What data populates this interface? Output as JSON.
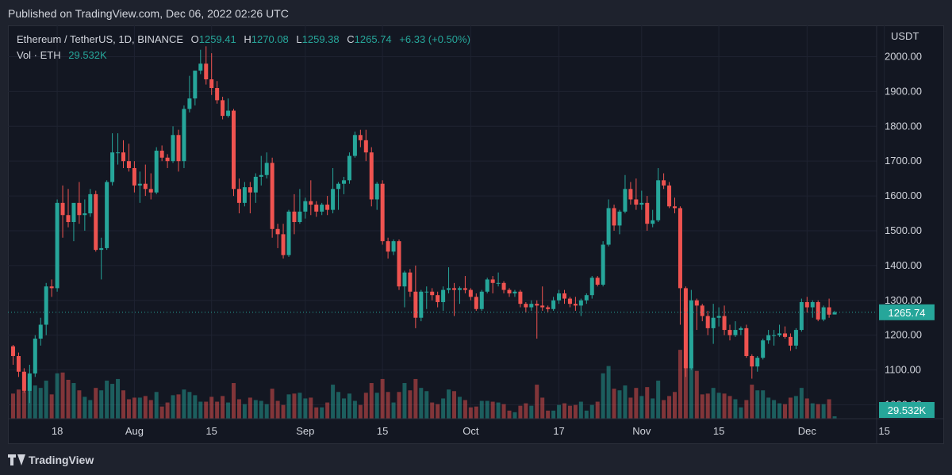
{
  "header": {
    "published": "Published on TradingView.com, Dec 06, 2022 02:26 UTC"
  },
  "legend": {
    "symbol": "Ethereum / TetherUS, 1D, BINANCE",
    "o_label": "O",
    "o_value": "1259.41",
    "h_label": "H",
    "h_value": "1270.08",
    "l_label": "L",
    "l_value": "1259.38",
    "c_label": "C",
    "c_value": "1265.74",
    "change": "+6.33 (+0.50%)",
    "vol_label": "Vol · ETH",
    "vol_value": "29.532K"
  },
  "footer": {
    "brand": "TradingView"
  },
  "colors": {
    "up": "#26a69a",
    "down": "#ef5350",
    "background": "#131722",
    "text": "#d1d4dc",
    "grid": "#1f2331"
  },
  "chart_data": {
    "type": "candlestick",
    "title": "Ethereum / TetherUS, 1D, BINANCE",
    "currency": "USDT",
    "ylim": [
      960,
      2090
    ],
    "yticks": [
      "2000.00",
      "1900.00",
      "1800.00",
      "1700.00",
      "1600.00",
      "1500.00",
      "1400.00",
      "1300.00",
      "1200.00",
      "1100.00",
      "1000.00"
    ],
    "xticks": [
      {
        "label": "18",
        "date": "2022-07-18"
      },
      {
        "label": "Aug",
        "date": "2022-08-01"
      },
      {
        "label": "15",
        "date": "2022-08-15"
      },
      {
        "label": "Sep",
        "date": "2022-09-01"
      },
      {
        "label": "15",
        "date": "2022-09-15"
      },
      {
        "label": "Oct",
        "date": "2022-10-01"
      },
      {
        "label": "17",
        "date": "2022-10-17"
      },
      {
        "label": "Nov",
        "date": "2022-11-01"
      },
      {
        "label": "15",
        "date": "2022-11-15"
      },
      {
        "label": "Dec",
        "date": "2022-12-01"
      },
      {
        "label": "15",
        "date": "2022-12-15"
      }
    ],
    "last_price": "1265.74",
    "last_volume": "29.532K",
    "columns": [
      "date",
      "open",
      "high",
      "low",
      "close",
      "volume"
    ],
    "candles": [
      [
        "2022-07-10",
        1168,
        1172,
        1115,
        1140,
        310
      ],
      [
        "2022-07-11",
        1140,
        1150,
        1080,
        1095,
        360
      ],
      [
        "2022-07-12",
        1095,
        1105,
        1035,
        1040,
        340
      ],
      [
        "2022-07-13",
        1040,
        1115,
        1005,
        1090,
        520
      ],
      [
        "2022-07-14",
        1090,
        1200,
        1080,
        1190,
        410
      ],
      [
        "2022-07-15",
        1190,
        1250,
        1170,
        1230,
        380
      ],
      [
        "2022-07-16",
        1230,
        1350,
        1200,
        1340,
        470
      ],
      [
        "2022-07-17",
        1340,
        1360,
        1310,
        1335,
        300
      ],
      [
        "2022-07-18",
        1335,
        1590,
        1325,
        1580,
        560
      ],
      [
        "2022-07-19",
        1580,
        1630,
        1480,
        1545,
        570
      ],
      [
        "2022-07-20",
        1545,
        1620,
        1510,
        1525,
        480
      ],
      [
        "2022-07-21",
        1525,
        1570,
        1470,
        1580,
        440
      ],
      [
        "2022-07-22",
        1580,
        1640,
        1520,
        1545,
        350
      ],
      [
        "2022-07-23",
        1545,
        1590,
        1500,
        1550,
        270
      ],
      [
        "2022-07-24",
        1550,
        1620,
        1540,
        1605,
        230
      ],
      [
        "2022-07-25",
        1605,
        1615,
        1440,
        1445,
        380
      ],
      [
        "2022-07-26",
        1445,
        1480,
        1360,
        1450,
        350
      ],
      [
        "2022-07-27",
        1450,
        1645,
        1445,
        1640,
        470
      ],
      [
        "2022-07-28",
        1640,
        1780,
        1630,
        1725,
        430
      ],
      [
        "2022-07-29",
        1725,
        1780,
        1690,
        1725,
        490
      ],
      [
        "2022-07-30",
        1725,
        1760,
        1680,
        1700,
        350
      ],
      [
        "2022-07-31",
        1700,
        1750,
        1670,
        1680,
        240
      ],
      [
        "2022-08-01",
        1680,
        1700,
        1610,
        1630,
        260
      ],
      [
        "2022-08-02",
        1630,
        1670,
        1580,
        1635,
        260
      ],
      [
        "2022-08-03",
        1635,
        1690,
        1600,
        1620,
        280
      ],
      [
        "2022-08-04",
        1620,
        1665,
        1590,
        1610,
        230
      ],
      [
        "2022-08-05",
        1610,
        1740,
        1605,
        1730,
        330
      ],
      [
        "2022-08-06",
        1730,
        1745,
        1700,
        1710,
        150
      ],
      [
        "2022-08-07",
        1710,
        1720,
        1680,
        1700,
        200
      ],
      [
        "2022-08-08",
        1700,
        1800,
        1695,
        1775,
        290
      ],
      [
        "2022-08-09",
        1775,
        1790,
        1670,
        1700,
        300
      ],
      [
        "2022-08-10",
        1700,
        1860,
        1680,
        1850,
        360
      ],
      [
        "2022-08-11",
        1850,
        1945,
        1840,
        1880,
        330
      ],
      [
        "2022-08-12",
        1880,
        1960,
        1860,
        1960,
        290
      ],
      [
        "2022-08-13",
        1960,
        2020,
        1950,
        1980,
        210
      ],
      [
        "2022-08-14",
        1980,
        2030,
        1920,
        1935,
        210
      ],
      [
        "2022-08-15",
        1935,
        2010,
        1890,
        1910,
        270
      ],
      [
        "2022-08-16",
        1910,
        1930,
        1865,
        1875,
        210
      ],
      [
        "2022-08-17",
        1875,
        1885,
        1820,
        1830,
        280
      ],
      [
        "2022-08-18",
        1830,
        1880,
        1825,
        1845,
        200
      ],
      [
        "2022-08-19",
        1845,
        1850,
        1600,
        1620,
        440
      ],
      [
        "2022-08-20",
        1620,
        1650,
        1550,
        1580,
        240
      ],
      [
        "2022-08-21",
        1580,
        1640,
        1570,
        1625,
        180
      ],
      [
        "2022-08-22",
        1625,
        1640,
        1550,
        1610,
        260
      ],
      [
        "2022-08-23",
        1610,
        1665,
        1580,
        1655,
        230
      ],
      [
        "2022-08-24",
        1655,
        1715,
        1630,
        1660,
        220
      ],
      [
        "2022-08-25",
        1660,
        1725,
        1650,
        1695,
        180
      ],
      [
        "2022-08-26",
        1695,
        1710,
        1480,
        1505,
        370
      ],
      [
        "2022-08-27",
        1505,
        1520,
        1450,
        1490,
        220
      ],
      [
        "2022-08-28",
        1490,
        1520,
        1420,
        1430,
        170
      ],
      [
        "2022-08-29",
        1430,
        1560,
        1425,
        1555,
        300
      ],
      [
        "2022-08-30",
        1555,
        1605,
        1490,
        1525,
        310
      ],
      [
        "2022-08-31",
        1525,
        1620,
        1520,
        1555,
        320
      ],
      [
        "2022-09-01",
        1555,
        1595,
        1535,
        1585,
        250
      ],
      [
        "2022-09-02",
        1585,
        1645,
        1545,
        1575,
        260
      ],
      [
        "2022-09-03",
        1575,
        1585,
        1540,
        1555,
        140
      ],
      [
        "2022-09-04",
        1555,
        1580,
        1545,
        1575,
        140
      ],
      [
        "2022-09-05",
        1575,
        1600,
        1545,
        1560,
        200
      ],
      [
        "2022-09-06",
        1560,
        1680,
        1550,
        1620,
        420
      ],
      [
        "2022-09-07",
        1620,
        1640,
        1560,
        1635,
        330
      ],
      [
        "2022-09-08",
        1635,
        1655,
        1605,
        1645,
        250
      ],
      [
        "2022-09-09",
        1645,
        1725,
        1635,
        1715,
        310
      ],
      [
        "2022-09-10",
        1715,
        1785,
        1710,
        1775,
        220
      ],
      [
        "2022-09-11",
        1775,
        1790,
        1740,
        1760,
        170
      ],
      [
        "2022-09-12",
        1760,
        1790,
        1700,
        1725,
        320
      ],
      [
        "2022-09-13",
        1725,
        1740,
        1570,
        1590,
        440
      ],
      [
        "2022-09-14",
        1590,
        1640,
        1560,
        1635,
        320
      ],
      [
        "2022-09-15",
        1635,
        1645,
        1460,
        1470,
        490
      ],
      [
        "2022-09-16",
        1470,
        1480,
        1420,
        1440,
        330
      ],
      [
        "2022-09-17",
        1440,
        1475,
        1430,
        1470,
        200
      ],
      [
        "2022-09-18",
        1470,
        1475,
        1330,
        1340,
        330
      ],
      [
        "2022-09-19",
        1340,
        1385,
        1280,
        1380,
        440
      ],
      [
        "2022-09-20",
        1380,
        1390,
        1310,
        1325,
        350
      ],
      [
        "2022-09-21",
        1325,
        1400,
        1220,
        1250,
        490
      ],
      [
        "2022-09-22",
        1250,
        1330,
        1240,
        1325,
        380
      ],
      [
        "2022-09-23",
        1325,
        1340,
        1275,
        1325,
        340
      ],
      [
        "2022-09-24",
        1325,
        1335,
        1300,
        1315,
        200
      ],
      [
        "2022-09-25",
        1315,
        1325,
        1280,
        1295,
        180
      ],
      [
        "2022-09-26",
        1295,
        1340,
        1270,
        1330,
        250
      ],
      [
        "2022-09-27",
        1330,
        1395,
        1320,
        1335,
        360
      ],
      [
        "2022-09-28",
        1335,
        1350,
        1255,
        1330,
        340
      ],
      [
        "2022-09-29",
        1330,
        1340,
        1290,
        1335,
        270
      ],
      [
        "2022-09-30",
        1335,
        1370,
        1320,
        1330,
        230
      ],
      [
        "2022-10-01",
        1330,
        1335,
        1300,
        1310,
        140
      ],
      [
        "2022-10-02",
        1310,
        1320,
        1270,
        1275,
        150
      ],
      [
        "2022-10-03",
        1275,
        1330,
        1270,
        1325,
        220
      ],
      [
        "2022-10-04",
        1325,
        1365,
        1320,
        1360,
        220
      ],
      [
        "2022-10-05",
        1360,
        1370,
        1320,
        1350,
        210
      ],
      [
        "2022-10-06",
        1350,
        1380,
        1340,
        1350,
        200
      ],
      [
        "2022-10-07",
        1350,
        1355,
        1320,
        1330,
        180
      ],
      [
        "2022-10-08",
        1330,
        1335,
        1310,
        1320,
        100
      ],
      [
        "2022-10-09",
        1320,
        1330,
        1310,
        1325,
        80
      ],
      [
        "2022-10-10",
        1325,
        1330,
        1280,
        1290,
        160
      ],
      [
        "2022-10-11",
        1290,
        1295,
        1265,
        1280,
        190
      ],
      [
        "2022-10-12",
        1280,
        1300,
        1270,
        1290,
        160
      ],
      [
        "2022-10-13",
        1290,
        1300,
        1190,
        1285,
        420
      ],
      [
        "2022-10-14",
        1285,
        1340,
        1270,
        1280,
        260
      ],
      [
        "2022-10-15",
        1280,
        1285,
        1265,
        1275,
        100
      ],
      [
        "2022-10-16",
        1275,
        1310,
        1270,
        1300,
        100
      ],
      [
        "2022-10-17",
        1300,
        1330,
        1290,
        1320,
        170
      ],
      [
        "2022-10-18",
        1320,
        1330,
        1290,
        1305,
        190
      ],
      [
        "2022-10-19",
        1305,
        1310,
        1280,
        1290,
        160
      ],
      [
        "2022-10-20",
        1290,
        1310,
        1270,
        1285,
        170
      ],
      [
        "2022-10-21",
        1285,
        1305,
        1255,
        1300,
        210
      ],
      [
        "2022-10-22",
        1300,
        1320,
        1290,
        1315,
        100
      ],
      [
        "2022-10-23",
        1315,
        1370,
        1305,
        1365,
        170
      ],
      [
        "2022-10-24",
        1365,
        1370,
        1340,
        1345,
        210
      ],
      [
        "2022-10-25",
        1345,
        1470,
        1340,
        1460,
        560
      ],
      [
        "2022-10-26",
        1460,
        1590,
        1455,
        1565,
        650
      ],
      [
        "2022-10-27",
        1565,
        1575,
        1500,
        1515,
        370
      ],
      [
        "2022-10-28",
        1515,
        1560,
        1490,
        1555,
        350
      ],
      [
        "2022-10-29",
        1555,
        1660,
        1550,
        1620,
        410
      ],
      [
        "2022-10-30",
        1620,
        1640,
        1575,
        1590,
        260
      ],
      [
        "2022-10-31",
        1590,
        1650,
        1560,
        1575,
        380
      ],
      [
        "2022-11-01",
        1575,
        1615,
        1560,
        1580,
        280
      ],
      [
        "2022-11-02",
        1580,
        1600,
        1500,
        1520,
        390
      ],
      [
        "2022-11-03",
        1520,
        1560,
        1510,
        1530,
        250
      ],
      [
        "2022-11-04",
        1530,
        1680,
        1525,
        1645,
        470
      ],
      [
        "2022-11-05",
        1645,
        1665,
        1620,
        1630,
        230
      ],
      [
        "2022-11-06",
        1630,
        1640,
        1565,
        1570,
        280
      ],
      [
        "2022-11-07",
        1570,
        1595,
        1550,
        1565,
        330
      ],
      [
        "2022-11-08",
        1565,
        1570,
        1230,
        1335,
        850
      ],
      [
        "2022-11-09",
        1335,
        1340,
        1080,
        1105,
        1370
      ],
      [
        "2022-11-10",
        1105,
        1330,
        1100,
        1300,
        1080
      ],
      [
        "2022-11-11",
        1300,
        1305,
        1215,
        1285,
        590
      ],
      [
        "2022-11-12",
        1285,
        1290,
        1240,
        1255,
        300
      ],
      [
        "2022-11-13",
        1255,
        1270,
        1200,
        1220,
        310
      ],
      [
        "2022-11-14",
        1220,
        1290,
        1175,
        1250,
        380
      ],
      [
        "2022-11-15",
        1250,
        1280,
        1225,
        1255,
        320
      ],
      [
        "2022-11-16",
        1255,
        1285,
        1200,
        1215,
        310
      ],
      [
        "2022-11-17",
        1215,
        1230,
        1185,
        1200,
        280
      ],
      [
        "2022-11-18",
        1200,
        1240,
        1195,
        1215,
        240
      ],
      [
        "2022-11-19",
        1215,
        1225,
        1200,
        1220,
        140
      ],
      [
        "2022-11-20",
        1220,
        1230,
        1135,
        1140,
        230
      ],
      [
        "2022-11-21",
        1140,
        1145,
        1075,
        1110,
        420
      ],
      [
        "2022-11-22",
        1110,
        1140,
        1095,
        1135,
        350
      ],
      [
        "2022-11-23",
        1135,
        1190,
        1130,
        1185,
        350
      ],
      [
        "2022-11-24",
        1185,
        1215,
        1175,
        1200,
        260
      ],
      [
        "2022-11-25",
        1200,
        1215,
        1170,
        1200,
        230
      ],
      [
        "2022-11-26",
        1200,
        1230,
        1195,
        1205,
        190
      ],
      [
        "2022-11-27",
        1205,
        1225,
        1190,
        1195,
        180
      ],
      [
        "2022-11-28",
        1195,
        1205,
        1155,
        1170,
        260
      ],
      [
        "2022-11-29",
        1170,
        1220,
        1160,
        1215,
        280
      ],
      [
        "2022-11-30",
        1215,
        1305,
        1210,
        1295,
        380
      ],
      [
        "2022-12-01",
        1295,
        1310,
        1265,
        1280,
        250
      ],
      [
        "2022-12-02",
        1280,
        1300,
        1250,
        1295,
        190
      ],
      [
        "2022-12-03",
        1295,
        1300,
        1240,
        1245,
        180
      ],
      [
        "2022-12-04",
        1245,
        1285,
        1240,
        1280,
        180
      ],
      [
        "2022-12-05",
        1280,
        1305,
        1250,
        1259,
        240
      ],
      [
        "2022-12-06",
        1259.41,
        1270.08,
        1259.38,
        1265.74,
        29.5
      ]
    ]
  }
}
